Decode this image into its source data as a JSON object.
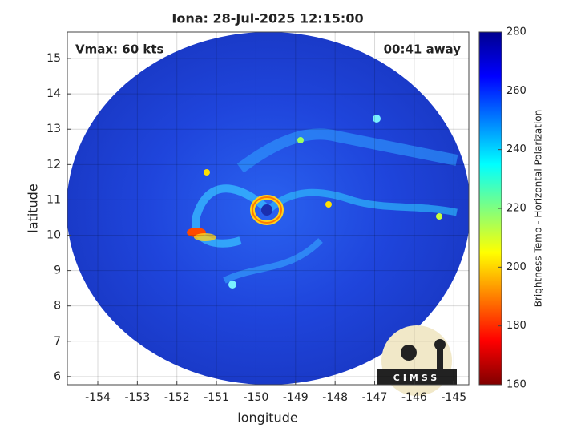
{
  "chart_data": {
    "type": "image",
    "title": "Iona: 28-Jul-2025 12:15:00",
    "x_label": "longitude",
    "y_label": "latitude",
    "xlim": [
      -154.77,
      -144.62
    ],
    "ylim": [
      5.77,
      15.75
    ],
    "xticks": [
      -154,
      -153,
      -152,
      -151,
      -150,
      -149,
      -148,
      -147,
      -146,
      -145
    ],
    "yticks": [
      6,
      7,
      8,
      9,
      10,
      11,
      12,
      13,
      14,
      15
    ],
    "grid": true,
    "annotations": [
      "Vmax: 60 kts",
      "00:41 away"
    ],
    "logo": "CIMSS",
    "colorbar": {
      "label": "Brightness Temp - Horizontal Polarization",
      "lim": [
        160,
        280
      ],
      "ticks": [
        160,
        180,
        200,
        220,
        240,
        260,
        280
      ],
      "colormap": "jet"
    }
  }
}
